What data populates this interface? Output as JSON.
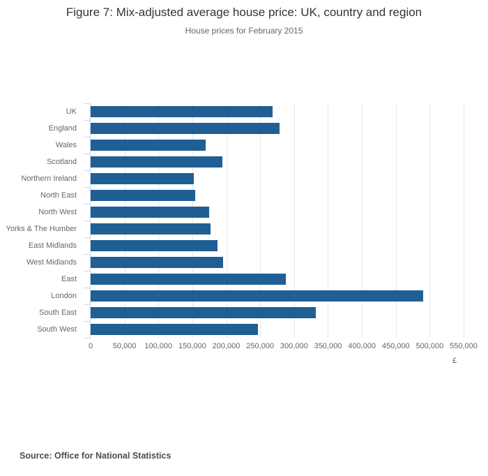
{
  "header": {
    "title": "Figure 7: Mix-adjusted average house price: UK, country and region",
    "subtitle": "House prices for February 2015"
  },
  "footer": {
    "source": "Source: Office for National Statistics"
  },
  "chart_data": {
    "type": "bar",
    "orientation": "horizontal",
    "title": "Figure 7: Mix-adjusted average house price: UK, country and region",
    "subtitle": "House prices for February 2015",
    "categories": [
      "UK",
      "England",
      "Wales",
      "Scotland",
      "Northern Ireland",
      "North East",
      "North West",
      "Yorks & The Humber",
      "East Midlands",
      "West Midlands",
      "East",
      "London",
      "South East",
      "South West"
    ],
    "values": [
      268000,
      279000,
      170000,
      194000,
      152000,
      154000,
      175000,
      177000,
      187000,
      195000,
      288000,
      490000,
      332000,
      247000
    ],
    "xlabel": "£",
    "xlim": [
      0,
      550000
    ],
    "xtick_labels": [
      "0",
      "50,000",
      "100,000",
      "150,000",
      "200,000",
      "250,000",
      "300,000",
      "350,000",
      "400,000",
      "450,000",
      "500,000",
      "550,000"
    ],
    "bar_color": "#205F94",
    "grid": true,
    "legend": "none"
  }
}
